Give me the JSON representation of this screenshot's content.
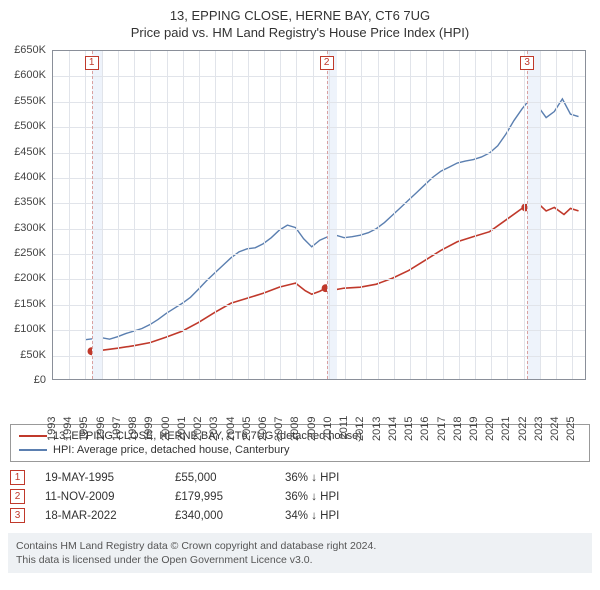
{
  "title": "13, EPPING CLOSE, HERNE BAY, CT6 7UG",
  "subtitle": "Price paid vs. HM Land Registry's House Price Index (HPI)",
  "chart": {
    "type": "line",
    "background_color": "#ffffff",
    "grid_color": "#e1e4ea",
    "axis_color": "#8a8f99",
    "xlim": [
      1993,
      2025.9
    ],
    "ylim": [
      0,
      650000
    ],
    "ytick_step": 50000,
    "ytick_labels": [
      "£0",
      "£50K",
      "£100K",
      "£150K",
      "£200K",
      "£250K",
      "£300K",
      "£350K",
      "£400K",
      "£450K",
      "£500K",
      "£550K",
      "£600K",
      "£650K"
    ],
    "xtick_years": [
      1993,
      1994,
      1995,
      1996,
      1997,
      1998,
      1999,
      2000,
      2001,
      2002,
      2003,
      2004,
      2005,
      2006,
      2007,
      2008,
      2009,
      2010,
      2011,
      2012,
      2013,
      2014,
      2015,
      2016,
      2017,
      2018,
      2019,
      2020,
      2021,
      2022,
      2023,
      2024,
      2025
    ],
    "shaded_bands_x": [
      [
        1995.38,
        1996
      ],
      [
        2009.86,
        2010.5
      ],
      [
        2022.21,
        2023
      ]
    ],
    "marker_dot_radius": 4,
    "marker_dot_fill": "#c0392b",
    "marker_box_border": "#c0392b",
    "marker_dashed_color": "#d9a0a0",
    "series": [
      {
        "name": "price_paid",
        "label": "13, EPPING CLOSE, HERNE BAY, CT6 7UG (detached house)",
        "color": "#c0392b",
        "line_width": 1.6,
        "data": [
          [
            1995.38,
            55000
          ],
          [
            1996,
            57000
          ],
          [
            1997,
            61000
          ],
          [
            1998,
            66000
          ],
          [
            1999,
            72000
          ],
          [
            2000,
            83000
          ],
          [
            2001,
            95000
          ],
          [
            2002,
            112000
          ],
          [
            2003,
            132000
          ],
          [
            2004,
            150000
          ],
          [
            2005,
            160000
          ],
          [
            2006,
            170000
          ],
          [
            2007,
            182000
          ],
          [
            2008,
            190000
          ],
          [
            2008.6,
            175000
          ],
          [
            2009,
            168000
          ],
          [
            2009.5,
            174000
          ],
          [
            2009.86,
            179995
          ],
          [
            2010.3,
            176000
          ],
          [
            2011,
            180000
          ],
          [
            2012,
            182000
          ],
          [
            2013,
            188000
          ],
          [
            2014,
            200000
          ],
          [
            2015,
            215000
          ],
          [
            2016,
            235000
          ],
          [
            2017,
            255000
          ],
          [
            2018,
            272000
          ],
          [
            2019,
            282000
          ],
          [
            2020,
            292000
          ],
          [
            2021,
            315000
          ],
          [
            2022,
            338000
          ],
          [
            2022.21,
            340000
          ],
          [
            2022.7,
            355000
          ],
          [
            2023,
            348000
          ],
          [
            2023.5,
            333000
          ],
          [
            2024,
            340000
          ],
          [
            2024.6,
            326000
          ],
          [
            2025,
            338000
          ],
          [
            2025.5,
            333000
          ]
        ]
      },
      {
        "name": "hpi",
        "label": "HPI: Average price, detached house, Canterbury",
        "color": "#5b7fb0",
        "line_width": 1.4,
        "data": [
          [
            1995,
            78000
          ],
          [
            1995.5,
            80000
          ],
          [
            1996,
            82000
          ],
          [
            1996.5,
            79000
          ],
          [
            1997,
            84000
          ],
          [
            1997.5,
            90000
          ],
          [
            1998,
            95000
          ],
          [
            1998.5,
            100000
          ],
          [
            1999,
            108000
          ],
          [
            1999.5,
            118000
          ],
          [
            2000,
            130000
          ],
          [
            2000.5,
            140000
          ],
          [
            2001,
            150000
          ],
          [
            2001.5,
            162000
          ],
          [
            2002,
            178000
          ],
          [
            2002.5,
            195000
          ],
          [
            2003,
            210000
          ],
          [
            2003.5,
            225000
          ],
          [
            2004,
            240000
          ],
          [
            2004.5,
            252000
          ],
          [
            2005,
            258000
          ],
          [
            2005.5,
            260000
          ],
          [
            2006,
            268000
          ],
          [
            2006.5,
            280000
          ],
          [
            2007,
            295000
          ],
          [
            2007.5,
            305000
          ],
          [
            2008,
            300000
          ],
          [
            2008.5,
            278000
          ],
          [
            2009,
            262000
          ],
          [
            2009.5,
            275000
          ],
          [
            2010,
            282000
          ],
          [
            2010.5,
            285000
          ],
          [
            2011,
            280000
          ],
          [
            2011.5,
            282000
          ],
          [
            2012,
            285000
          ],
          [
            2012.5,
            290000
          ],
          [
            2013,
            298000
          ],
          [
            2013.5,
            310000
          ],
          [
            2014,
            325000
          ],
          [
            2014.5,
            340000
          ],
          [
            2015,
            355000
          ],
          [
            2015.5,
            370000
          ],
          [
            2016,
            385000
          ],
          [
            2016.5,
            400000
          ],
          [
            2017,
            412000
          ],
          [
            2017.5,
            420000
          ],
          [
            2018,
            428000
          ],
          [
            2018.5,
            432000
          ],
          [
            2019,
            435000
          ],
          [
            2019.5,
            440000
          ],
          [
            2020,
            448000
          ],
          [
            2020.5,
            462000
          ],
          [
            2021,
            485000
          ],
          [
            2021.5,
            512000
          ],
          [
            2022,
            535000
          ],
          [
            2022.5,
            555000
          ],
          [
            2023,
            540000
          ],
          [
            2023.5,
            518000
          ],
          [
            2024,
            530000
          ],
          [
            2024.5,
            555000
          ],
          [
            2025,
            525000
          ],
          [
            2025.5,
            520000
          ]
        ]
      }
    ],
    "sale_markers": [
      {
        "num": "1",
        "x": 1995.38,
        "y": 55000
      },
      {
        "num": "2",
        "x": 2009.86,
        "y": 179995
      },
      {
        "num": "3",
        "x": 2022.21,
        "y": 340000
      }
    ],
    "title_fontsize": 13,
    "tick_fontsize": 11
  },
  "legend": {
    "series_order": [
      "price_paid",
      "hpi"
    ]
  },
  "sales": [
    {
      "num": "1",
      "date": "19-MAY-1995",
      "price": "£55,000",
      "vs_hpi": "36% ↓ HPI"
    },
    {
      "num": "2",
      "date": "11-NOV-2009",
      "price": "£179,995",
      "vs_hpi": "36% ↓ HPI"
    },
    {
      "num": "3",
      "date": "18-MAR-2022",
      "price": "£340,000",
      "vs_hpi": "34% ↓ HPI"
    }
  ],
  "attribution": {
    "line1": "Contains HM Land Registry data © Crown copyright and database right 2024.",
    "line2": "This data is licensed under the Open Government Licence v3.0."
  }
}
